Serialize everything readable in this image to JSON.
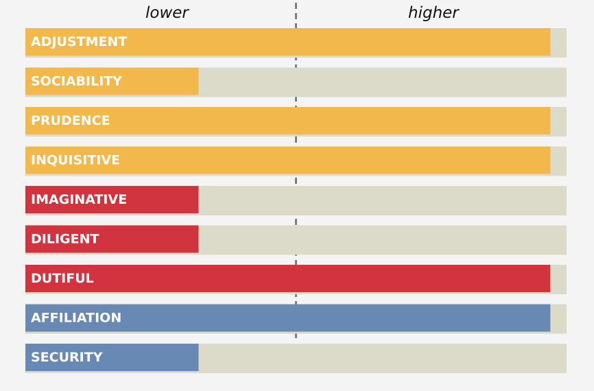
{
  "chart_data": {
    "type": "bar",
    "orientation": "horizontal",
    "xlim": [
      0,
      100
    ],
    "axis_left_label": "lower",
    "axis_right_label": "higher",
    "midline": 50,
    "grid": false,
    "track_color": "#dcdac8",
    "background_color": "#f4f4f4",
    "midline_color": "#7d7d7d",
    "categories": [
      "ADJUSTMENT",
      "SOCIABILITY",
      "PRUDENCE",
      "INQUISITIVE",
      "IMAGINATIVE",
      "DILIGENT",
      "DUTIFUL",
      "AFFILIATION",
      "SECURITY"
    ],
    "values": [
      97,
      32,
      97,
      97,
      32,
      32,
      97,
      97,
      32
    ],
    "colors": [
      "#f2b84b",
      "#f2b84b",
      "#f2b84b",
      "#f2b84b",
      "#d1343f",
      "#d1343f",
      "#d1343f",
      "#6889b3",
      "#6889b3"
    ]
  }
}
